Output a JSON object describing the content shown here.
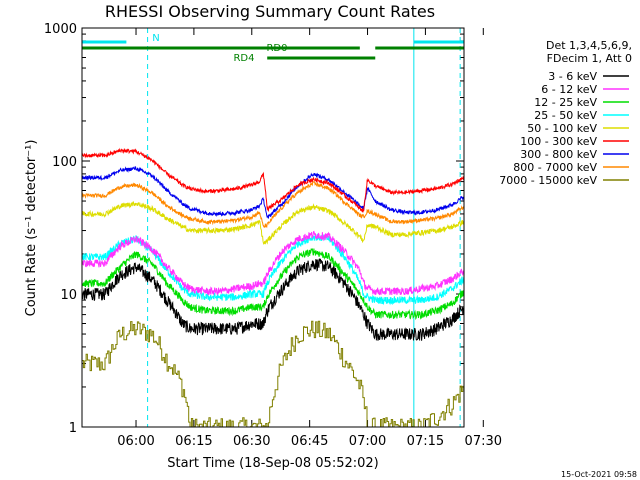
{
  "title": "RHESSI Observing Summary Count Rates",
  "timestamp": "15-Oct-2021 09:58",
  "chart_data": {
    "type": "line",
    "title": "RHESSI Observing Summary Count Rates",
    "xlabel": "Start Time (18-Sep-08 05:52:02)",
    "ylabel": "Count Rate (s⁻¹ detector⁻¹)",
    "xlim_minutes": [
      -6.0,
      93.0
    ],
    "ylim": [
      1,
      1000
    ],
    "yscale": "log",
    "x_ticks": [
      {
        "label": "06:00",
        "minute": 8
      },
      {
        "label": "06:15",
        "minute": 23
      },
      {
        "label": "06:30",
        "minute": 38
      },
      {
        "label": "06:45",
        "minute": 53
      },
      {
        "label": "07:00",
        "minute": 68
      },
      {
        "label": "07:15",
        "minute": 83
      },
      {
        "label": "07:30",
        "minute": 98
      }
    ],
    "y_ticks": [
      {
        "label": "1",
        "value": 1
      },
      {
        "label": "10",
        "value": 10
      },
      {
        "label": "100",
        "value": 100
      },
      {
        "label": "1000",
        "value": 1000
      }
    ],
    "legend_header": [
      "Det 1,3,4,5,6,9,",
      "FDecim 1, Att 0"
    ],
    "legend_position": "right",
    "x": [
      0,
      4,
      8,
      12,
      16,
      20,
      22,
      26,
      30,
      34,
      38,
      40,
      41,
      42,
      46,
      50,
      54,
      58,
      62,
      66,
      67,
      68,
      70,
      74,
      78,
      82,
      86,
      90,
      93
    ],
    "series": [
      {
        "name": "3 - 6 keV",
        "color": "#000000",
        "noise": 0.05,
        "values": [
          10,
          14,
          16,
          13,
          9,
          6,
          5.5,
          5.5,
          5.5,
          5.5,
          6,
          6,
          6,
          7.5,
          11,
          15,
          17,
          16,
          12,
          8,
          7,
          6,
          5,
          5,
          5,
          5,
          5.5,
          6.5,
          8
        ]
      },
      {
        "name": "6 - 12 keV",
        "color": "#ff33ff",
        "noise": 0.03,
        "values": [
          17,
          23,
          26,
          22,
          16,
          12,
          11,
          10.5,
          10.5,
          11,
          11.5,
          12,
          12,
          14,
          21,
          26,
          28,
          27,
          21,
          15,
          12,
          11,
          10.5,
          10.5,
          10.5,
          11,
          11.5,
          13,
          15
        ]
      },
      {
        "name": "12 - 25 keV",
        "color": "#00dd00",
        "noise": 0.03,
        "values": [
          12,
          16,
          20,
          17,
          12,
          9,
          8,
          7.5,
          7.5,
          7.5,
          8,
          8,
          8,
          9.5,
          14,
          19,
          21,
          19,
          14,
          10,
          9,
          8,
          7,
          7,
          7,
          7,
          7.5,
          8.5,
          10.5
        ]
      },
      {
        "name": "25 - 50 keV",
        "color": "#00ffff",
        "noise": 0.03,
        "values": [
          19,
          24,
          26,
          21,
          15,
          11,
          10,
          9.5,
          9.5,
          9.5,
          10,
          10,
          10,
          12,
          18,
          24,
          27,
          26,
          19,
          12,
          10,
          9.5,
          9,
          9,
          9,
          9,
          9.5,
          11,
          13
        ]
      },
      {
        "name": "50 - 100 keV",
        "color": "#dddd00",
        "noise": 0.02,
        "values": [
          40,
          46,
          48,
          44,
          37,
          32,
          30,
          30,
          30,
          31,
          33,
          35,
          24,
          25,
          33,
          42,
          45,
          42,
          34,
          27,
          25,
          33,
          32,
          28,
          28,
          29,
          30,
          32,
          35
        ]
      },
      {
        "name": "100 - 300 keV",
        "color": "#ff0000",
        "noise": 0.015,
        "values": [
          110,
          120,
          118,
          102,
          80,
          66,
          62,
          59,
          60,
          62,
          66,
          70,
          80,
          43,
          52,
          66,
          73,
          68,
          55,
          44,
          42,
          72,
          65,
          58,
          58,
          60,
          62,
          67,
          75
        ]
      },
      {
        "name": "300 - 800 keV",
        "color": "#0000ee",
        "noise": 0.015,
        "values": [
          75,
          85,
          88,
          78,
          60,
          48,
          44,
          41,
          40,
          41,
          43,
          46,
          52,
          37,
          48,
          65,
          80,
          72,
          58,
          46,
          44,
          62,
          50,
          43,
          41,
          41,
          43,
          47,
          54
        ]
      },
      {
        "name": "800 - 7000 keV",
        "color": "#ff8800",
        "noise": 0.015,
        "values": [
          55,
          64,
          66,
          58,
          46,
          39,
          37,
          35,
          35,
          36,
          38,
          41,
          32,
          33,
          45,
          58,
          68,
          62,
          49,
          39,
          38,
          42,
          40,
          35,
          35,
          36,
          37,
          40,
          45
        ]
      },
      {
        "name": "7000 - 15000 keV",
        "color": "#808000",
        "noise": 0.0,
        "values": [
          3,
          5,
          5.5,
          5,
          3.2,
          2,
          1,
          1,
          1,
          1,
          1,
          1,
          1,
          1,
          3,
          5,
          5.5,
          5,
          3.2,
          2,
          1.5,
          1,
          1,
          1,
          1,
          1,
          1.2,
          1.5,
          2
        ]
      }
    ],
    "flags": [
      {
        "label": "N",
        "color": "#00e5ee",
        "segments": [
          [
            -6,
            5.5
          ],
          [
            80,
            93
          ]
        ]
      },
      {
        "label": "RD0",
        "color": "#008000",
        "segments": [
          [
            -6,
            66
          ],
          [
            70,
            93
          ]
        ]
      },
      {
        "label": "RD4",
        "color": "#008000",
        "segments": [
          [
            42,
            70
          ]
        ]
      }
    ],
    "vertical_markers": [
      {
        "minute": -6,
        "style": "dashed",
        "color": "#00e5ee"
      },
      {
        "minute": 11,
        "style": "dashed",
        "color": "#00e5ee"
      },
      {
        "minute": 92,
        "style": "dashed",
        "color": "#00e5ee"
      },
      {
        "minute": 80,
        "style": "solid",
        "color": "#00e5ee"
      }
    ]
  }
}
